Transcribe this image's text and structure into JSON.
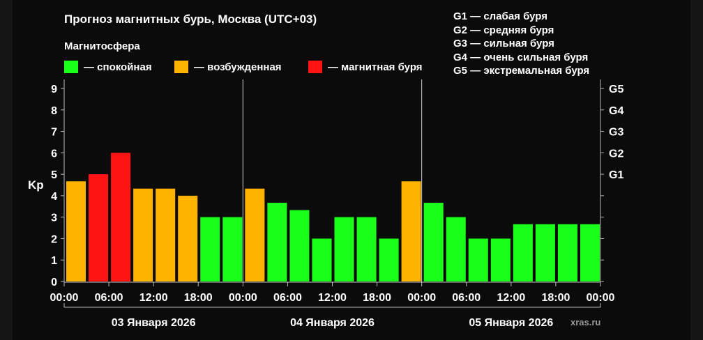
{
  "title": "Прогноз магнитных бурь, Москва (UTC+03)",
  "subtitle": "Магнитосфера",
  "magnetosphere_legend": [
    {
      "label": "— спокойная",
      "color": "#1aff1a"
    },
    {
      "label": "— возбужденная",
      "color": "#ffb300"
    },
    {
      "label": "— магнитная буря",
      "color": "#ff1414"
    }
  ],
  "storm_legend": [
    "G1 — слабая буря",
    "G2 — средняя буря",
    "G3 — сильная буря",
    "G4 — очень сильная буря",
    "G5 — экстремальная буря"
  ],
  "source": "xras.ru",
  "chart_data": {
    "type": "bar",
    "ylabel": "Kp",
    "ylim": [
      0,
      9.5
    ],
    "y_ticks": [
      "0",
      "1",
      "2",
      "3",
      "4",
      "5",
      "6",
      "7",
      "8",
      "9"
    ],
    "right_ticks": [
      {
        "value": 5,
        "label": "G1"
      },
      {
        "value": 6,
        "label": "G2"
      },
      {
        "value": 7,
        "label": "G3"
      },
      {
        "value": 8,
        "label": "G4"
      },
      {
        "value": 9,
        "label": "G5"
      }
    ],
    "x_ticks": [
      "00:00",
      "06:00",
      "12:00",
      "18:00",
      "00:00",
      "06:00",
      "12:00",
      "18:00",
      "00:00",
      "06:00",
      "12:00",
      "18:00",
      "00:00"
    ],
    "days": [
      "03 Января 2026",
      "04 Января 2026",
      "05 Января 2026"
    ],
    "grid": false,
    "colors": {
      "quiet": "#1aff1a",
      "active": "#ffb300",
      "storm": "#ff1414"
    },
    "series": [
      {
        "values": [
          4.67,
          5.0,
          6.0,
          4.33,
          4.33,
          4.0,
          3.0,
          3.0,
          4.33,
          3.67,
          3.33,
          2.0,
          3.0,
          3.0,
          2.0,
          4.67,
          3.67,
          3.0,
          2.0,
          2.0,
          2.67,
          2.67,
          2.67,
          2.67
        ],
        "levels": [
          "active",
          "storm",
          "storm",
          "active",
          "active",
          "active",
          "quiet",
          "quiet",
          "active",
          "quiet",
          "quiet",
          "quiet",
          "quiet",
          "quiet",
          "quiet",
          "active",
          "quiet",
          "quiet",
          "quiet",
          "quiet",
          "quiet",
          "quiet",
          "quiet",
          "quiet"
        ]
      }
    ]
  }
}
